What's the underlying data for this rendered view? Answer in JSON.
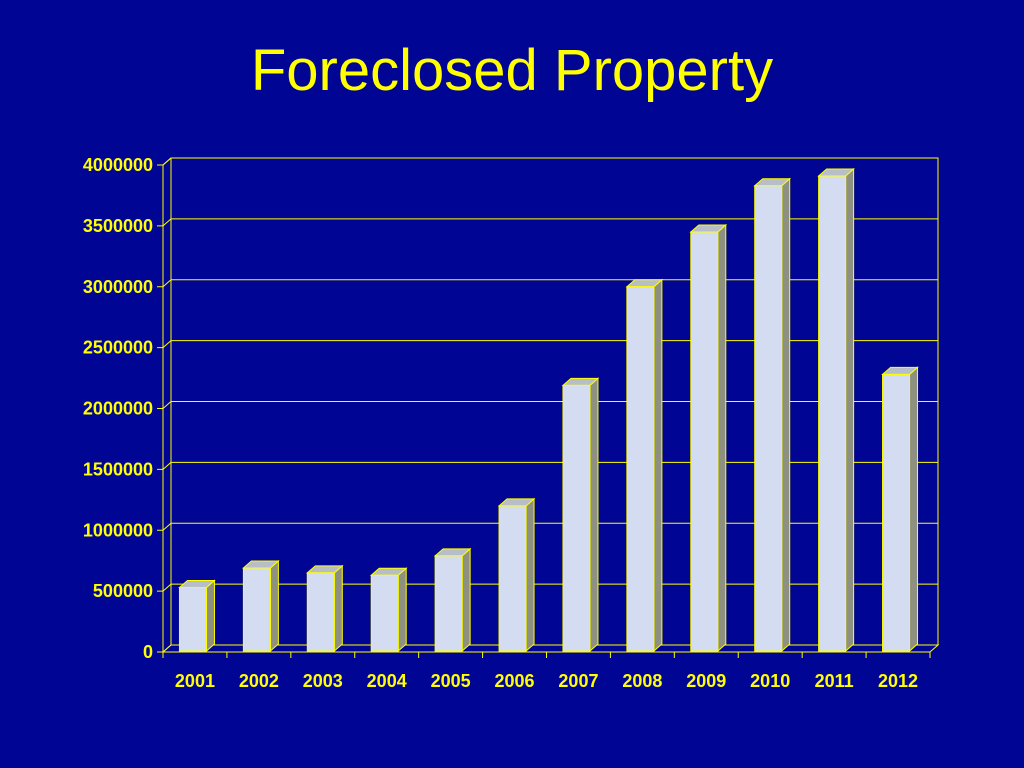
{
  "chart_data": {
    "type": "bar",
    "title": "Foreclosed Property",
    "xlabel": "",
    "ylabel": "",
    "categories": [
      "2001",
      "2002",
      "2003",
      "2004",
      "2005",
      "2006",
      "2007",
      "2008",
      "2009",
      "2010",
      "2011",
      "2012"
    ],
    "values": [
      530000,
      690000,
      650000,
      630000,
      790000,
      1200000,
      2190000,
      3000000,
      3450000,
      3830000,
      3910000,
      2280000
    ],
    "ylim": [
      0,
      4000000
    ],
    "yticks": [
      "0",
      "500000",
      "1000000",
      "1500000",
      "2000000",
      "2500000",
      "3000000",
      "3500000",
      "4000000"
    ],
    "grid": true,
    "legend": "none",
    "colors": {
      "background": "#010593",
      "text": "#FFFF00",
      "axis": "#FFFF00",
      "bar_front": "#D3DCF0",
      "bar_side": "#8E9080",
      "bar_top": "#B8BEC8",
      "bar_outline": "#FFFF00"
    }
  }
}
